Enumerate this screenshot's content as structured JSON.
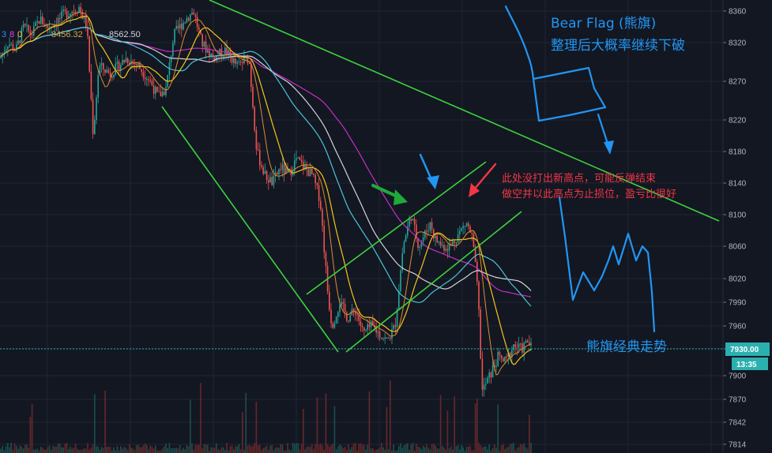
{
  "chart_data": {
    "type": "candlestick",
    "y_axis": {
      "range": [
        7800,
        8375
      ],
      "ticks": [
        8360,
        8320,
        8270,
        8220,
        8180,
        8140,
        8100,
        8060,
        8020,
        7990,
        7960,
        7930,
        7900,
        7870,
        7842,
        7814
      ]
    },
    "current_price": {
      "value": "7930.00",
      "countdown": "13:35"
    },
    "ma_readout": [
      {
        "text": "3",
        "color": "#2196f3"
      },
      {
        "text": "8",
        "color": "#e040fb"
      },
      {
        "text": "0",
        "color": "#f5d142"
      },
      {
        "text": "8456.32",
        "color": "#d0a84a"
      },
      {
        "text": "8562.50",
        "color": "#d1d4dc"
      }
    ],
    "annotations": {
      "title": "Bear Flag (熊旗)",
      "subtitle": "整理后大概率继续下破",
      "note_line1": "此处没打出新高点，可能反弹结束",
      "note_line2": "做空并以此高点为止损位，盈亏比很好",
      "bottom_label": "熊旗经典走势"
    },
    "colors": {
      "background": "#131722",
      "grid": "#1f2433",
      "up": "#26a69a",
      "down": "#ef5350",
      "trendline": "#3cd33c",
      "annotation_blue": "#2196f3",
      "annotation_red": "#f23645",
      "ma_purple": "#c42fc8",
      "ma_white": "#d1d4dc",
      "ma_cyan": "#4dc4d6",
      "ma_yellow": "#f5c518",
      "ma_orange": "#e58a2e",
      "price_line": "#2bb0b0"
    },
    "price_path": [
      [
        0,
        8300
      ],
      [
        10,
        8320
      ],
      [
        20,
        8310
      ],
      [
        30,
        8340
      ],
      [
        40,
        8330
      ],
      [
        50,
        8350
      ],
      [
        60,
        8340
      ],
      [
        70,
        8345
      ],
      [
        80,
        8355
      ],
      [
        90,
        8360
      ],
      [
        100,
        8365
      ],
      [
        110,
        8340
      ],
      [
        118,
        8200
      ],
      [
        125,
        8290
      ],
      [
        140,
        8280
      ],
      [
        160,
        8300
      ],
      [
        175,
        8290
      ],
      [
        190,
        8270
      ],
      [
        200,
        8250
      ],
      [
        210,
        8260
      ],
      [
        220,
        8330
      ],
      [
        235,
        8350
      ],
      [
        245,
        8360
      ],
      [
        255,
        8320
      ],
      [
        270,
        8300
      ],
      [
        285,
        8310
      ],
      [
        300,
        8290
      ],
      [
        315,
        8300
      ],
      [
        325,
        8180
      ],
      [
        335,
        8150
      ],
      [
        345,
        8140
      ],
      [
        355,
        8160
      ],
      [
        365,
        8150
      ],
      [
        375,
        8170
      ],
      [
        385,
        8160
      ],
      [
        395,
        8150
      ],
      [
        405,
        8120
      ],
      [
        415,
        8000
      ],
      [
        420,
        7960
      ],
      [
        430,
        7990
      ],
      [
        440,
        7970
      ],
      [
        450,
        7980
      ],
      [
        460,
        7950
      ],
      [
        470,
        7960
      ],
      [
        480,
        7950
      ],
      [
        490,
        7940
      ],
      [
        500,
        7960
      ],
      [
        510,
        8060
      ],
      [
        520,
        8100
      ],
      [
        525,
        8080
      ],
      [
        530,
        8060
      ],
      [
        540,
        8080
      ],
      [
        545,
        8090
      ],
      [
        550,
        8070
      ],
      [
        560,
        8060
      ],
      [
        570,
        8060
      ],
      [
        580,
        8075
      ],
      [
        590,
        8090
      ],
      [
        598,
        8070
      ],
      [
        605,
        8000
      ],
      [
        610,
        7880
      ],
      [
        620,
        7900
      ],
      [
        630,
        7920
      ],
      [
        640,
        7915
      ],
      [
        650,
        7935
      ],
      [
        660,
        7930
      ],
      [
        668,
        7940
      ],
      [
        673,
        7930
      ]
    ]
  }
}
